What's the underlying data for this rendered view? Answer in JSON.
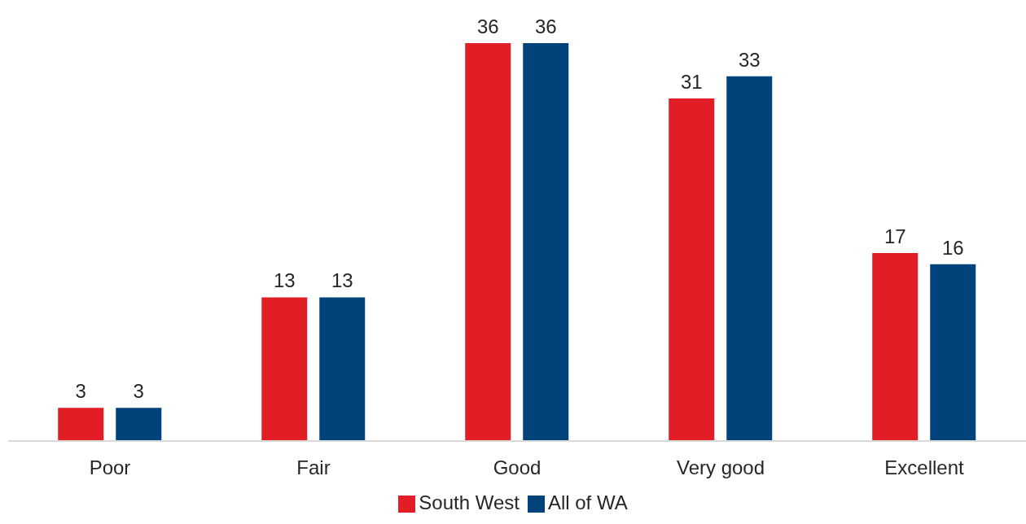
{
  "chart_data": {
    "type": "bar",
    "categories": [
      "Poor",
      "Fair",
      "Good",
      "Very good",
      "Excellent"
    ],
    "series": [
      {
        "name": "South West",
        "color": "#e31d25",
        "values": [
          3,
          13,
          36,
          31,
          17
        ]
      },
      {
        "name": "All of WA",
        "color": "#00437a",
        "values": [
          3,
          13,
          36,
          33,
          16
        ]
      }
    ],
    "data_labels": true,
    "legend": "bottom",
    "tick_labels": "x"
  }
}
